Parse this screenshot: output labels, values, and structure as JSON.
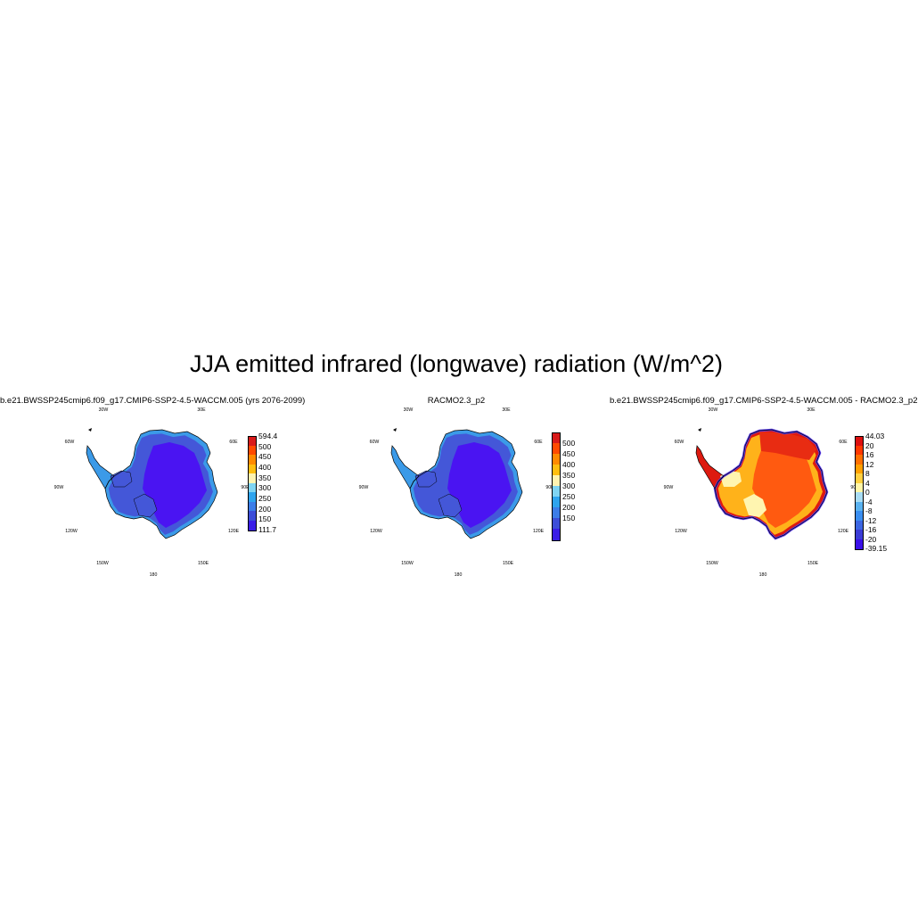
{
  "figure": {
    "title": "JJA emitted infrared (longwave) radiation (W/m^2)"
  },
  "lon_labels": [
    "30W",
    "30E",
    "60W",
    "60E",
    "90W",
    "90E",
    "120W",
    "120E",
    "150W",
    "150E",
    "180"
  ],
  "panels": [
    {
      "title": "b.e21.BWSSP245cmip6.f09_g17.CMIP6-SSP2-4.5-WACCM.005 (yrs 2076-2099)",
      "colorbar": {
        "colors": [
          "#3a1ee6",
          "#3d4ed8",
          "#3c7de8",
          "#2ea4ee",
          "#7fd4f2",
          "#fff3b0",
          "#ffbe10",
          "#ff8a00",
          "#ff4a00",
          "#d81a1a"
        ],
        "labels": [
          "594.4",
          "500",
          "450",
          "400",
          "350",
          "300",
          "250",
          "200",
          "150",
          "111.7"
        ]
      },
      "fill": {
        "interior": "#4a14f2",
        "mid": "#4457d8",
        "coast": "#3b9ae8"
      }
    },
    {
      "title": "RACMO2.3_p2",
      "colorbar": {
        "colors": [
          "#3a1ee6",
          "#3d4ed8",
          "#3c7de8",
          "#2ea4ee",
          "#7fd4f2",
          "#fff3b0",
          "#ffbe10",
          "#ff8a00",
          "#ff4a00",
          "#d81a1a"
        ],
        "labels": [
          "500",
          "450",
          "400",
          "350",
          "300",
          "250",
          "200",
          "150"
        ]
      },
      "fill": {
        "interior": "#4a14f2",
        "mid": "#4457d8",
        "coast": "#3b9ae8"
      }
    },
    {
      "title": "b.e21.BWSSP245cmip6.f09_g17.CMIP6-SSP2-4.5-WACCM.005 - RACMO2.3_p2",
      "colorbar": {
        "colors": [
          "#3a10e8",
          "#3b3cd6",
          "#3c66e2",
          "#3a8ef0",
          "#5ab2f0",
          "#a8dcf4",
          "#fff6a8",
          "#ffd040",
          "#ffa000",
          "#ff7000",
          "#ff3800",
          "#dd1010"
        ],
        "labels": [
          "44.03",
          "20",
          "16",
          "12",
          "8",
          "4",
          "0",
          "-4",
          "-8",
          "-12",
          "-16",
          "-20",
          "-39.15"
        ]
      },
      "fill": {
        "interior": "#ff5a10",
        "mid": "#ffb21a",
        "coast": "#dd1a10",
        "east": "#e82c12",
        "ross": "#fff5b0",
        "edge": "#5a3cf0"
      }
    }
  ]
}
